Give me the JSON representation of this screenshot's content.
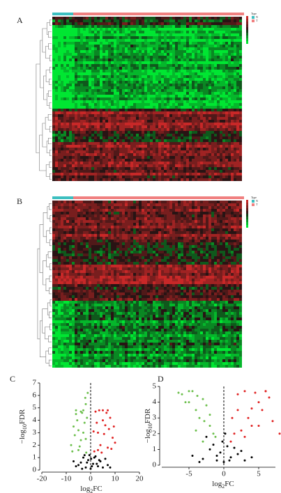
{
  "chart_data": [
    {
      "type": "heatmap",
      "label": "A",
      "legend_title": "Type",
      "groups": [
        {
          "name": "N",
          "color": "#3cbfc0"
        },
        {
          "name": "T",
          "color": "#f08080"
        }
      ]
    },
    {
      "type": "heatmap",
      "label": "B",
      "legend_title": "Type",
      "groups": [
        {
          "name": "N",
          "color": "#3cbfc0"
        },
        {
          "name": "T",
          "color": "#f08080"
        }
      ]
    },
    {
      "type": "scatter",
      "label": "C",
      "xlabel": [
        "log",
        "2",
        "FC"
      ],
      "ylabel": [
        "−log",
        "10",
        "FDR"
      ],
      "xlim": [
        -20,
        20
      ],
      "ylim": [
        0,
        7
      ],
      "xticks": [
        -20,
        -10,
        0,
        10,
        20
      ],
      "yticks": [
        0,
        1,
        2,
        3,
        4,
        5,
        6,
        7
      ],
      "series": [
        {
          "color": "#000000",
          "x": [
            -6,
            -4,
            -3,
            -2,
            -1,
            0,
            1,
            2,
            3,
            4,
            5,
            6,
            -5,
            -2.5,
            -1.5,
            0.5,
            1.5,
            2.5,
            3.5,
            -0.5,
            7,
            -7,
            8,
            0.2,
            -3.5
          ],
          "values": [
            0.3,
            0.6,
            1.0,
            0.2,
            0.8,
            0.1,
            0.5,
            1.1,
            0.3,
            0.7,
            0.2,
            0.9,
            0.4,
            1.2,
            0.6,
            0.3,
            1.0,
            0.5,
            0.8,
            1.2,
            0.4,
            0.7,
            0.2,
            0.9,
            0.1
          ]
        },
        {
          "color": "#6cbf4c",
          "x": [
            -8,
            -7,
            -6,
            -5,
            -4,
            -3,
            -2,
            -1.5,
            -6.5,
            -5.5,
            -4.5,
            -3.5,
            -2.5,
            -7.5,
            -5,
            -3,
            -2,
            -4,
            -6,
            -1.2,
            -2.2,
            -1.8
          ],
          "values": [
            2,
            3.5,
            4.5,
            1.6,
            4.7,
            3,
            2.5,
            4.2,
            2.8,
            4.0,
            1.9,
            4.6,
            3.8,
            1.5,
            3.2,
            4.8,
            5.3,
            2.4,
            4.8,
            6.2,
            5.8,
            1.4
          ]
        },
        {
          "color": "#e02222",
          "x": [
            1.5,
            2,
            3,
            4,
            5,
            6,
            7,
            8,
            9,
            2.5,
            3.5,
            4.5,
            5.5,
            6.5,
            7.5,
            8.5,
            10,
            1.2,
            3,
            5,
            7,
            9.5
          ],
          "values": [
            1.5,
            4.7,
            3,
            2,
            4.8,
            3.6,
            1.8,
            4.2,
            2.6,
            3.8,
            4.8,
            1.4,
            2.9,
            4.6,
            3.3,
            1.7,
            2.2,
            3.1,
            1.6,
            4.0,
            4.8,
            3.5
          ]
        }
      ]
    },
    {
      "type": "scatter",
      "label": "D",
      "xlabel": [
        "log",
        "2",
        "FC"
      ],
      "ylabel": [
        "−log",
        "10",
        "FDR"
      ],
      "xlim": [
        -8.9,
        7.4
      ],
      "ylim": [
        0,
        5
      ],
      "xticks": [
        -5,
        0,
        5
      ],
      "yticks": [
        0,
        1,
        2,
        3,
        4,
        5
      ],
      "series": [
        {
          "color": "#000000",
          "x": [
            -3,
            -2,
            -1,
            -0.5,
            0,
            0.5,
            1,
            2,
            3,
            -1.5,
            1.5,
            -4.5,
            -3.5,
            0.2,
            2.5,
            -2.5,
            4,
            -0.2,
            0.8,
            -1
          ],
          "values": [
            0.4,
            1.0,
            0.3,
            0.8,
            0.2,
            1.2,
            0.5,
            0.7,
            0.3,
            1.3,
            1.1,
            0.6,
            0.2,
            2.0,
            0.9,
            1.8,
            0.5,
            1.5,
            0.3,
            0.6
          ]
        },
        {
          "color": "#6cbf4c",
          "x": [
            -6,
            -5,
            -4,
            -3,
            -2,
            -5.5,
            -4.5,
            -3.5,
            -2.5,
            -1.5,
            -6.5,
            -3,
            -4,
            -2,
            -5,
            -1.2,
            -3.8,
            -2.8
          ],
          "values": [
            4.5,
            4.7,
            3.5,
            4.2,
            2.5,
            4.0,
            4.7,
            3.0,
            3.8,
            2.0,
            4.6,
            1.5,
            2.2,
            3.2,
            4.0,
            1.8,
            4.4,
            2.8
          ]
        },
        {
          "color": "#e02222",
          "x": [
            1.5,
            2,
            3,
            4,
            5,
            6,
            7,
            1,
            2.5,
            3.5,
            4.5,
            5.5,
            6.5,
            8,
            2,
            3,
            4,
            5,
            1.2,
            6
          ],
          "values": [
            2.0,
            3.5,
            4.7,
            2.5,
            4.0,
            4.7,
            2.8,
            1.5,
            2.2,
            3.0,
            4.6,
            3.5,
            4.3,
            2.0,
            4.5,
            1.8,
            3.6,
            2.5,
            3.0,
            4.7
          ]
        }
      ]
    }
  ]
}
